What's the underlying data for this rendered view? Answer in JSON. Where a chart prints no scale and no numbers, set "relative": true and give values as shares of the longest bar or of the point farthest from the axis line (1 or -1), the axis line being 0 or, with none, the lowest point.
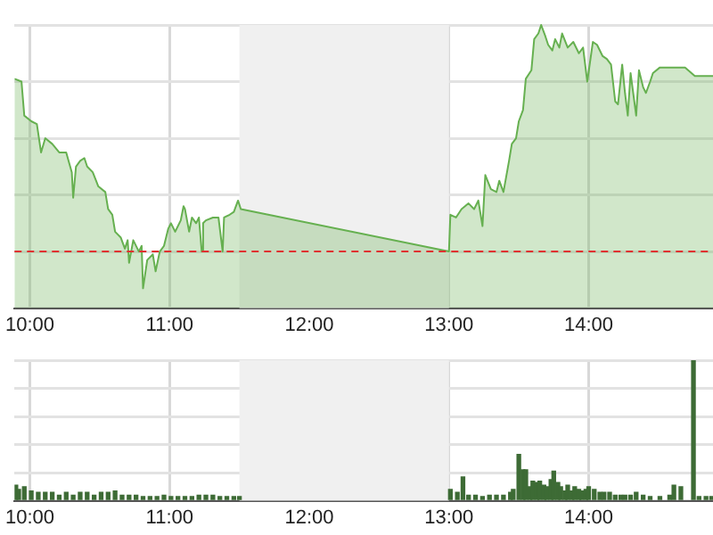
{
  "chart_data": [
    {
      "type": "area",
      "relative": true,
      "grid": true,
      "legend": false,
      "xlim": [
        9.89,
        14.89
      ],
      "xticks": [
        {
          "value": 10,
          "label": "10:00"
        },
        {
          "value": 11,
          "label": "11:00"
        },
        {
          "value": 12,
          "label": "12:00"
        },
        {
          "value": 13,
          "label": "13:00"
        },
        {
          "value": 14,
          "label": "14:00"
        }
      ],
      "bands": [
        {
          "axis": "x",
          "from": 11.5,
          "to": 13,
          "color": "#f0f0f0"
        }
      ],
      "ref_lines": [
        {
          "axis": "y",
          "value": 0.2,
          "color": "#e03030",
          "line_style": "dashed"
        }
      ],
      "series": [
        {
          "color": "#66b050",
          "x": [
            9.89,
            9.94,
            9.96,
            10.01,
            10.05,
            10.08,
            10.11,
            10.16,
            10.21,
            10.26,
            10.3,
            10.31,
            10.33,
            10.36,
            10.39,
            10.41,
            10.45,
            10.49,
            10.54,
            10.56,
            10.59,
            10.61,
            10.65,
            10.68,
            10.7,
            10.71,
            10.74,
            10.78,
            10.8,
            10.81,
            10.84,
            10.88,
            10.9,
            10.93,
            10.96,
            10.99,
            11.01,
            11.04,
            11.08,
            11.1,
            11.11,
            11.14,
            11.16,
            11.19,
            11.21,
            11.23,
            11.24,
            11.26,
            11.31,
            11.35,
            11.38,
            11.39,
            11.43,
            11.46,
            11.49,
            11.51,
            13,
            13.01,
            13.05,
            13.09,
            13.14,
            13.18,
            13.21,
            13.24,
            13.26,
            13.3,
            13.34,
            13.36,
            13.39,
            13.43,
            13.45,
            13.48,
            13.5,
            13.53,
            13.55,
            13.59,
            13.61,
            13.64,
            13.66,
            13.69,
            13.71,
            13.74,
            13.76,
            13.79,
            13.81,
            13.85,
            13.89,
            13.93,
            13.96,
            13.99,
            14.03,
            14.06,
            14.1,
            14.13,
            14.16,
            14.19,
            14.21,
            14.24,
            14.26,
            14.28,
            14.3,
            14.34,
            14.36,
            14.39,
            14.41,
            14.44,
            14.46,
            14.51,
            14.69,
            14.76,
            14.89
          ],
          "values": [
            0.81,
            0.8,
            0.68,
            0.66,
            0.65,
            0.55,
            0.6,
            0.58,
            0.55,
            0.55,
            0.48,
            0.39,
            0.5,
            0.52,
            0.53,
            0.5,
            0.48,
            0.43,
            0.41,
            0.35,
            0.33,
            0.27,
            0.25,
            0.21,
            0.24,
            0.16,
            0.24,
            0.2,
            0.22,
            0.07,
            0.17,
            0.19,
            0.13,
            0.2,
            0.22,
            0.28,
            0.3,
            0.27,
            0.31,
            0.36,
            0.35,
            0.27,
            0.32,
            0.3,
            0.32,
            0.2,
            0.3,
            0.31,
            0.32,
            0.32,
            0.2,
            0.32,
            0.33,
            0.34,
            0.38,
            0.35,
            0.2,
            0.33,
            0.32,
            0.35,
            0.37,
            0.35,
            0.38,
            0.29,
            0.47,
            0.42,
            0.41,
            0.45,
            0.41,
            0.52,
            0.58,
            0.6,
            0.66,
            0.7,
            0.81,
            0.84,
            0.95,
            0.97,
            1,
            0.96,
            0.93,
            0.91,
            0.95,
            0.92,
            0.97,
            0.92,
            0.94,
            0.9,
            0.92,
            0.8,
            0.94,
            0.93,
            0.89,
            0.88,
            0.86,
            0.73,
            0.72,
            0.86,
            0.76,
            0.68,
            0.83,
            0.68,
            0.84,
            0.78,
            0.76,
            0.8,
            0.83,
            0.85,
            0.85,
            0.82,
            0.82
          ]
        }
      ]
    },
    {
      "type": "bar",
      "relative": true,
      "grid": true,
      "legend": false,
      "xlim": [
        9.89,
        14.89
      ],
      "xticks": [
        {
          "value": 10,
          "label": "10:00"
        },
        {
          "value": 11,
          "label": "11:00"
        },
        {
          "value": 12,
          "label": "12:00"
        },
        {
          "value": 13,
          "label": "13:00"
        },
        {
          "value": 14,
          "label": "14:00"
        }
      ],
      "bands": [
        {
          "axis": "x",
          "from": 11.5,
          "to": 13,
          "color": "#f0f0f0"
        }
      ],
      "series": [
        {
          "color": "#3d6b35",
          "x": [
            9.9,
            9.92,
            9.96,
            10.01,
            10.06,
            10.11,
            10.16,
            10.21,
            10.26,
            10.31,
            10.36,
            10.41,
            10.46,
            10.51,
            10.56,
            10.61,
            10.66,
            10.71,
            10.76,
            10.81,
            10.86,
            10.91,
            10.96,
            11.01,
            11.06,
            11.11,
            11.16,
            11.21,
            11.26,
            11.31,
            11.36,
            11.41,
            11.46,
            11.5,
            13.01,
            13.06,
            13.1,
            13.14,
            13.19,
            13.24,
            13.29,
            13.34,
            13.39,
            13.44,
            13.46,
            13.5,
            13.53,
            13.55,
            13.58,
            13.6,
            13.63,
            13.65,
            13.68,
            13.7,
            13.73,
            13.75,
            13.78,
            13.8,
            13.83,
            13.85,
            13.88,
            13.9,
            13.93,
            13.95,
            13.98,
            14,
            14.04,
            14.08,
            14.11,
            14.15,
            14.19,
            14.23,
            14.26,
            14.3,
            14.34,
            14.39,
            14.44,
            14.51,
            14.58,
            14.61,
            14.66,
            14.75,
            14.79,
            14.84,
            14.88
          ],
          "values": [
            0.11,
            0.08,
            0.1,
            0.07,
            0.06,
            0.06,
            0.06,
            0.04,
            0.06,
            0.04,
            0.06,
            0.06,
            0.04,
            0.06,
            0.06,
            0.07,
            0.04,
            0.04,
            0.04,
            0.03,
            0.03,
            0.03,
            0.04,
            0.03,
            0.03,
            0.03,
            0.03,
            0.04,
            0.04,
            0.04,
            0.03,
            0.03,
            0.03,
            0.03,
            0.08,
            0.06,
            0.17,
            0.04,
            0.04,
            0.03,
            0.04,
            0.04,
            0.04,
            0.06,
            0.08,
            0.33,
            0.22,
            0.22,
            0.1,
            0.14,
            0.13,
            0.14,
            0.11,
            0.1,
            0.15,
            0.21,
            0.13,
            0.1,
            0.07,
            0.11,
            0.07,
            0.1,
            0.08,
            0.07,
            0.08,
            0.1,
            0.08,
            0.06,
            0.06,
            0.06,
            0.04,
            0.04,
            0.04,
            0.04,
            0.06,
            0.04,
            0.03,
            0.03,
            0.04,
            0.11,
            0.1,
            1,
            0.03,
            0.03,
            0.03
          ]
        }
      ]
    }
  ]
}
